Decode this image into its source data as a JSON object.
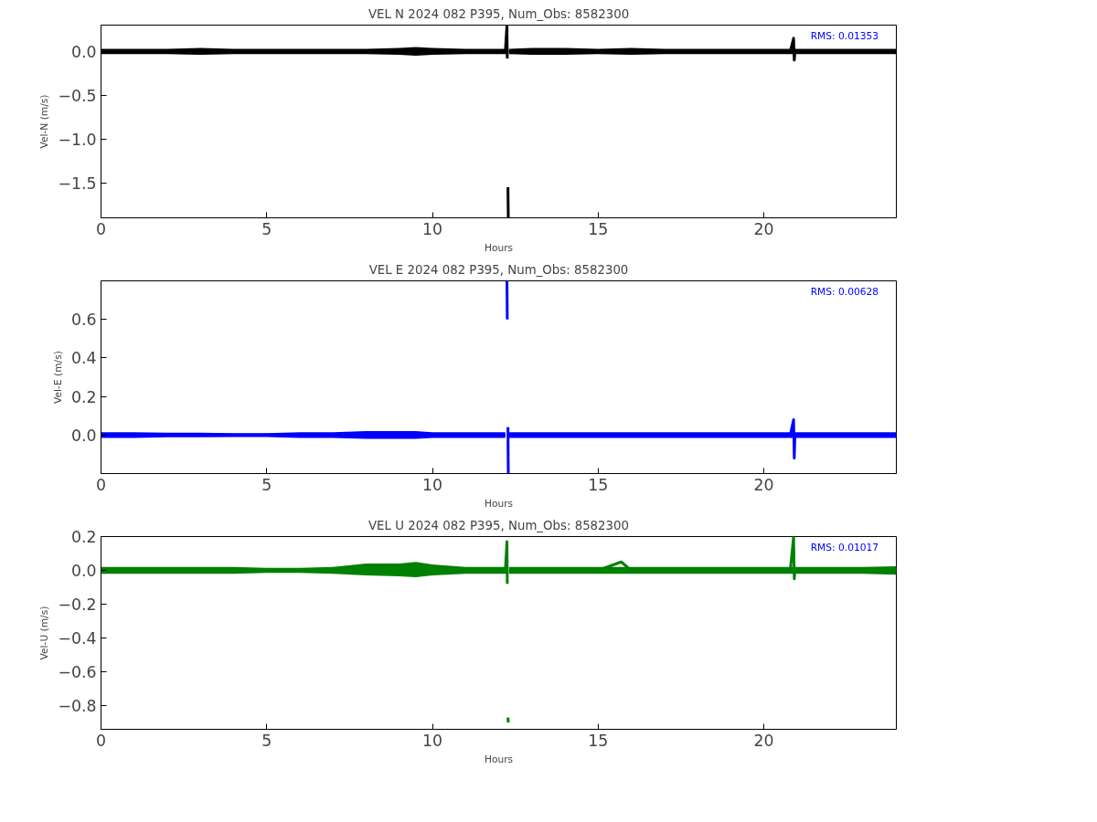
{
  "chart_data": [
    {
      "type": "line",
      "title": "VEL N 2024 082 P395, Num_Obs: 8582300",
      "xlabel": "Hours",
      "ylabel": "Vel-N (m/s)",
      "x": [
        0,
        1,
        2,
        3,
        4,
        5,
        6,
        7,
        8,
        9,
        9.5,
        10,
        11,
        12,
        12.2,
        12.25,
        12.26,
        12.27,
        12.28,
        12.29,
        12.3,
        12.31,
        13,
        14,
        15,
        16,
        17,
        18,
        19,
        20,
        20.8,
        20.9,
        20.92,
        20.94,
        21,
        22,
        23,
        24
      ],
      "series": [
        {
          "color": "#000000",
          "values": [
            0,
            0,
            0,
            0,
            0,
            0,
            0,
            0,
            0,
            0,
            0,
            0,
            0,
            0,
            0,
            0.3,
            -0.08,
            null,
            -1.55,
            -1.9,
            null,
            0,
            0,
            0,
            0,
            0,
            0,
            0,
            0,
            0,
            0,
            0.15,
            -0.1,
            0,
            0,
            0,
            0,
            0
          ],
          "lower": [
            -0.03,
            -0.03,
            -0.03,
            -0.04,
            -0.03,
            -0.03,
            -0.03,
            -0.03,
            -0.03,
            -0.04,
            -0.05,
            -0.04,
            -0.03,
            -0.03,
            -0.03,
            -0.03,
            -0.03,
            null,
            null,
            null,
            null,
            -0.03,
            -0.04,
            -0.04,
            -0.03,
            -0.04,
            -0.03,
            -0.03,
            -0.03,
            -0.03,
            -0.03,
            -0.03,
            -0.03,
            -0.03,
            -0.03,
            -0.03,
            -0.03,
            -0.03
          ],
          "upper": [
            0.03,
            0.03,
            0.03,
            0.04,
            0.03,
            0.03,
            0.03,
            0.03,
            0.03,
            0.04,
            0.05,
            0.04,
            0.03,
            0.03,
            0.03,
            0.03,
            0.03,
            null,
            null,
            null,
            null,
            0.03,
            0.04,
            0.04,
            0.03,
            0.04,
            0.03,
            0.03,
            0.03,
            0.03,
            0.03,
            0.03,
            0.03,
            0.03,
            0.03,
            0.03,
            0.03,
            0.03
          ]
        }
      ],
      "xlim": [
        0,
        24
      ],
      "xticks": [
        0,
        5,
        10,
        15,
        20
      ],
      "ylim": [
        -1.9,
        0.3
      ],
      "yticks": [
        {
          "value": -1.5,
          "label": "−1.5"
        },
        {
          "value": -1.0,
          "label": "−1.0"
        },
        {
          "value": -0.5,
          "label": "−0.5"
        },
        {
          "value": 0,
          "label": "0.0"
        }
      ],
      "annotations": [
        "RMS:  0.01353"
      ]
    },
    {
      "type": "line",
      "title": "VEL E 2024 082 P395, Num_Obs: 8582300",
      "xlabel": "Hours",
      "ylabel": "Vel-E (m/s)",
      "x": [
        0,
        1,
        2,
        3,
        4,
        5,
        6,
        7,
        8,
        9,
        9.5,
        10,
        11,
        12,
        12.2,
        12.24,
        12.25,
        12.26,
        12.27,
        12.28,
        12.29,
        12.3,
        12.31,
        13,
        14,
        15,
        16,
        17,
        18,
        19,
        20,
        20.8,
        20.9,
        20.92,
        20.94,
        21,
        22,
        23,
        24
      ],
      "series": [
        {
          "color": "#0000ff",
          "values": [
            0,
            0,
            0,
            0,
            0,
            0,
            0,
            0,
            0,
            0,
            0,
            0,
            0,
            0,
            0,
            null,
            0.8,
            0.6,
            null,
            0.04,
            -0.2,
            null,
            0,
            0,
            0,
            0,
            0,
            0,
            0,
            0,
            0,
            0,
            0.08,
            -0.12,
            0,
            0,
            0,
            0,
            0
          ],
          "lower": [
            -0.015,
            -0.015,
            -0.012,
            -0.012,
            -0.01,
            -0.01,
            -0.015,
            -0.015,
            -0.02,
            -0.02,
            -0.02,
            -0.015,
            -0.015,
            -0.015,
            -0.015,
            null,
            null,
            null,
            null,
            null,
            null,
            null,
            -0.015,
            -0.015,
            -0.015,
            -0.015,
            -0.015,
            -0.015,
            -0.015,
            -0.015,
            -0.015,
            -0.015,
            -0.015,
            -0.015,
            -0.015,
            -0.015,
            -0.015,
            -0.015,
            -0.015
          ],
          "upper": [
            0.015,
            0.015,
            0.012,
            0.012,
            0.01,
            0.01,
            0.015,
            0.015,
            0.02,
            0.02,
            0.02,
            0.015,
            0.015,
            0.015,
            0.015,
            null,
            null,
            null,
            null,
            null,
            null,
            null,
            0.015,
            0.015,
            0.015,
            0.015,
            0.015,
            0.015,
            0.015,
            0.015,
            0.015,
            0.015,
            0.015,
            0.015,
            0.015,
            0.015,
            0.015,
            0.015,
            0.015
          ]
        }
      ],
      "xlim": [
        0,
        24
      ],
      "xticks": [
        0,
        5,
        10,
        15,
        20
      ],
      "ylim": [
        -0.2,
        0.8
      ],
      "yticks": [
        {
          "value": 0,
          "label": "0.0"
        },
        {
          "value": 0.2,
          "label": "0.2"
        },
        {
          "value": 0.4,
          "label": "0.4"
        },
        {
          "value": 0.6,
          "label": "0.6"
        }
      ],
      "annotations": [
        "RMS:  0.00628"
      ]
    },
    {
      "type": "line",
      "title": "VEL U 2024 082 P395, Num_Obs: 8582300",
      "xlabel": "Hours",
      "ylabel": "Vel-U (m/s)",
      "x": [
        0,
        1,
        2,
        3,
        4,
        5,
        6,
        7,
        8,
        9,
        9.5,
        10,
        11,
        12,
        12.2,
        12.25,
        12.26,
        12.27,
        12.28,
        12.29,
        12.3,
        12.31,
        13,
        14,
        15,
        15.7,
        16,
        17,
        18,
        19,
        20,
        20.8,
        20.9,
        20.92,
        20.94,
        21,
        22,
        23,
        24
      ],
      "series": [
        {
          "color": "#008000",
          "values": [
            0,
            0,
            0,
            0,
            0,
            0,
            0,
            0,
            0,
            0,
            0,
            0,
            0,
            0,
            0,
            0.17,
            -0.08,
            null,
            -0.87,
            -0.9,
            null,
            0,
            0,
            0,
            0,
            0.05,
            0,
            0,
            0,
            0,
            0,
            0,
            0.2,
            -0.05,
            0,
            0,
            0,
            0,
            0
          ],
          "lower": [
            -0.02,
            -0.02,
            -0.02,
            -0.02,
            -0.02,
            -0.015,
            -0.015,
            -0.02,
            -0.03,
            -0.035,
            -0.04,
            -0.03,
            -0.02,
            -0.02,
            -0.02,
            -0.02,
            -0.02,
            null,
            null,
            null,
            null,
            -0.02,
            -0.02,
            -0.02,
            -0.02,
            -0.02,
            -0.02,
            -0.02,
            -0.02,
            -0.02,
            -0.02,
            -0.02,
            -0.02,
            -0.02,
            -0.02,
            -0.02,
            -0.02,
            -0.02,
            -0.025
          ],
          "upper": [
            0.02,
            0.02,
            0.02,
            0.02,
            0.02,
            0.015,
            0.015,
            0.02,
            0.04,
            0.04,
            0.05,
            0.035,
            0.02,
            0.02,
            0.02,
            0.02,
            0.02,
            null,
            null,
            null,
            null,
            0.02,
            0.02,
            0.02,
            0.02,
            0.02,
            0.02,
            0.02,
            0.02,
            0.02,
            0.02,
            0.02,
            0.02,
            0.02,
            0.02,
            0.02,
            0.02,
            0.02,
            0.025
          ]
        }
      ],
      "xlim": [
        0,
        24
      ],
      "xticks": [
        0,
        5,
        10,
        15,
        20
      ],
      "ylim": [
        -0.94,
        0.2
      ],
      "yticks": [
        {
          "value": -0.8,
          "label": "−0.8"
        },
        {
          "value": -0.6,
          "label": "−0.6"
        },
        {
          "value": -0.4,
          "label": "−0.4"
        },
        {
          "value": -0.2,
          "label": "−0.2"
        },
        {
          "value": 0,
          "label": "0.0"
        },
        {
          "value": 0.2,
          "label": "0.2"
        }
      ],
      "annotations": [
        "RMS:  0.01017"
      ]
    }
  ]
}
